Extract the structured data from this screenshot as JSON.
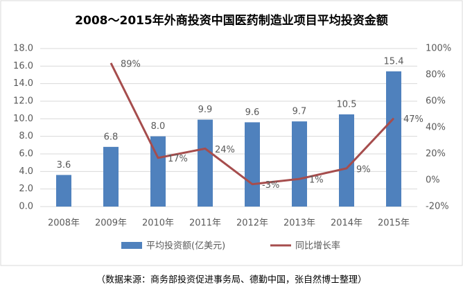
{
  "chart_data": {
    "type": "bar-line",
    "title": "2008～2015年外商投资中国医药制造业项目平均投资金额",
    "categories": [
      "2008年",
      "2009年",
      "2010年",
      "2011年",
      "2012年",
      "2013年",
      "2014年",
      "2015年"
    ],
    "series": [
      {
        "name": "平均投资额(亿美元)",
        "color": "#4f81bd",
        "type": "bar",
        "values": [
          3.6,
          6.8,
          8.0,
          9.9,
          9.6,
          9.7,
          10.5,
          15.4
        ],
        "value_labels": [
          "3.6",
          "6.8",
          "8.0",
          "9.9",
          "9.6",
          "9.7",
          "10.5",
          "15.4"
        ]
      },
      {
        "name": "同比增长率",
        "color": "#a64d4d",
        "type": "line",
        "axis": "y2",
        "values": [
          null,
          89,
          17,
          24,
          -3,
          1,
          9,
          47
        ],
        "value_labels": [
          null,
          "89%",
          "17%",
          "24%",
          "-3%",
          "1%",
          "9%",
          "47%"
        ]
      }
    ],
    "ylim": [
      0,
      18
    ],
    "yticks": [
      {
        "value": 0,
        "label": "0.0"
      },
      {
        "value": 2,
        "label": "2.0"
      },
      {
        "value": 4,
        "label": "4.0"
      },
      {
        "value": 6,
        "label": "6.0"
      },
      {
        "value": 8,
        "label": "8.0"
      },
      {
        "value": 10,
        "label": "10.0"
      },
      {
        "value": 12,
        "label": "12.0"
      },
      {
        "value": 14,
        "label": "14.0"
      },
      {
        "value": 16,
        "label": "16.0"
      },
      {
        "value": 18,
        "label": "18.0"
      }
    ],
    "y2lim": [
      -20,
      100
    ],
    "y2ticks": [
      {
        "value": -20,
        "label": "-20%"
      },
      {
        "value": 0,
        "label": "0%"
      },
      {
        "value": 20,
        "label": "20%"
      },
      {
        "value": 40,
        "label": "40%"
      },
      {
        "value": 60,
        "label": "60%"
      },
      {
        "value": 80,
        "label": "80%"
      },
      {
        "value": 100,
        "label": "100%"
      }
    ],
    "grid": true,
    "legend": "bottom",
    "source": "（数据来源：商务部投资促进事务局、德勤中国，张自然博士整理）"
  }
}
